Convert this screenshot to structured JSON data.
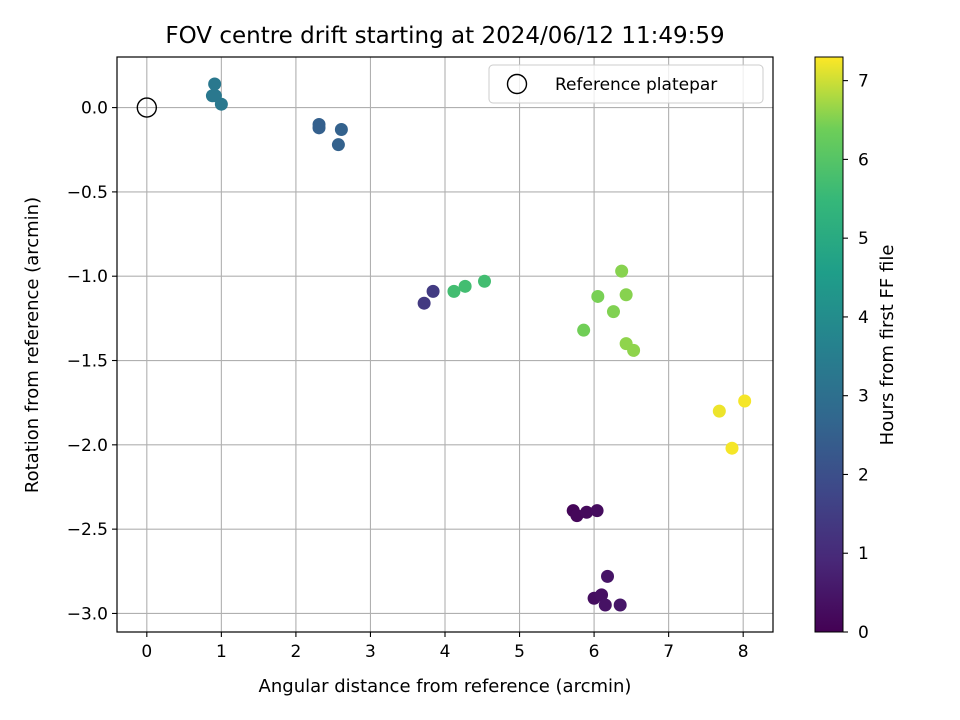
{
  "chart_data": {
    "type": "scatter",
    "title": "FOV centre drift starting at 2024/06/12 11:49:59",
    "xlabel": "Angular distance from reference (arcmin)",
    "ylabel": "Rotation from reference (arcmin)",
    "xlim": [
      -0.4,
      8.4
    ],
    "ylim": [
      -3.11,
      0.3
    ],
    "x_ticks": [
      0,
      1,
      2,
      3,
      4,
      5,
      6,
      7,
      8
    ],
    "x_tick_labels": [
      "0",
      "1",
      "2",
      "3",
      "4",
      "5",
      "6",
      "7",
      "8"
    ],
    "y_ticks": [
      0.0,
      -0.5,
      -1.0,
      -1.5,
      -2.0,
      -2.5,
      -3.0
    ],
    "y_tick_labels": [
      "0.0",
      "−0.5",
      "−1.0",
      "−1.5",
      "−2.0",
      "−2.5",
      "−3.0"
    ],
    "grid": true,
    "legend": {
      "placement": "upper right",
      "entries": [
        "Reference platepar"
      ]
    },
    "reference": {
      "name": "Reference platepar",
      "x": 0.0,
      "y": 0.0,
      "marker": "hollow circle"
    },
    "colorbar": {
      "label": "Hours from first FF file",
      "colormap": "viridis",
      "range": [
        0,
        7.3
      ],
      "ticks": [
        0,
        1,
        2,
        3,
        4,
        5,
        6,
        7
      ],
      "tick_labels": [
        "0",
        "1",
        "2",
        "3",
        "4",
        "5",
        "6",
        "7"
      ]
    },
    "points": [
      {
        "x": 5.72,
        "y": -2.39,
        "hours": 0.1
      },
      {
        "x": 5.77,
        "y": -2.42,
        "hours": 0.15
      },
      {
        "x": 5.9,
        "y": -2.4,
        "hours": 0.2
      },
      {
        "x": 6.04,
        "y": -2.39,
        "hours": 0.25
      },
      {
        "x": 6.0,
        "y": -2.91,
        "hours": 0.3
      },
      {
        "x": 6.1,
        "y": -2.89,
        "hours": 0.35
      },
      {
        "x": 6.15,
        "y": -2.95,
        "hours": 0.4
      },
      {
        "x": 6.18,
        "y": -2.78,
        "hours": 0.45
      },
      {
        "x": 6.35,
        "y": -2.95,
        "hours": 0.5
      },
      {
        "x": 3.72,
        "y": -1.16,
        "hours": 1.4
      },
      {
        "x": 3.84,
        "y": -1.09,
        "hours": 1.45
      },
      {
        "x": 2.31,
        "y": -0.1,
        "hours": 2.5
      },
      {
        "x": 2.31,
        "y": -0.12,
        "hours": 2.5
      },
      {
        "x": 2.61,
        "y": -0.13,
        "hours": 2.55
      },
      {
        "x": 2.57,
        "y": -0.22,
        "hours": 2.55
      },
      {
        "x": 0.91,
        "y": 0.14,
        "hours": 3.3
      },
      {
        "x": 0.88,
        "y": 0.07,
        "hours": 3.3
      },
      {
        "x": 0.92,
        "y": 0.07,
        "hours": 3.3
      },
      {
        "x": 1.0,
        "y": 0.02,
        "hours": 3.3
      },
      {
        "x": 4.12,
        "y": -1.09,
        "hours": 5.7
      },
      {
        "x": 4.27,
        "y": -1.06,
        "hours": 5.7
      },
      {
        "x": 4.53,
        "y": -1.03,
        "hours": 5.7
      },
      {
        "x": 5.86,
        "y": -1.32,
        "hours": 6.4
      },
      {
        "x": 6.05,
        "y": -1.12,
        "hours": 6.45
      },
      {
        "x": 6.26,
        "y": -1.21,
        "hours": 6.5
      },
      {
        "x": 6.37,
        "y": -0.97,
        "hours": 6.55
      },
      {
        "x": 6.43,
        "y": -1.11,
        "hours": 6.55
      },
      {
        "x": 6.43,
        "y": -1.4,
        "hours": 6.6
      },
      {
        "x": 6.53,
        "y": -1.44,
        "hours": 6.6
      },
      {
        "x": 7.68,
        "y": -1.8,
        "hours": 7.2
      },
      {
        "x": 7.85,
        "y": -2.02,
        "hours": 7.25
      },
      {
        "x": 8.02,
        "y": -1.74,
        "hours": 7.25
      }
    ]
  }
}
